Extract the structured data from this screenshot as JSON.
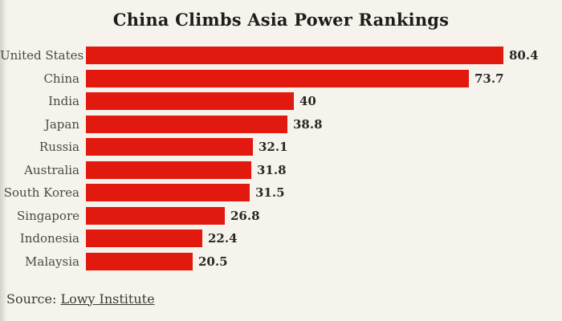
{
  "title": "China Climbs Asia Power Rankings",
  "source": {
    "prefix": "Source: ",
    "link_label": "Lowy Institute"
  },
  "colors": {
    "background": "#f6f3ed",
    "bar": "#e2190e",
    "title_text": "#1f1d1c",
    "label_text": "#4b4845",
    "value_text": "#2a2725",
    "source_text": "#3c3936"
  },
  "chart_data": {
    "type": "bar",
    "orientation": "horizontal",
    "title": "China Climbs Asia Power Rankings",
    "xlabel": "",
    "ylabel": "",
    "xlim": [
      0,
      85
    ],
    "grid": false,
    "legend": null,
    "categories": [
      "United States",
      "China",
      "India",
      "Japan",
      "Russia",
      "Australia",
      "South Korea",
      "Singapore",
      "Indonesia",
      "Malaysia"
    ],
    "values": [
      80.4,
      73.7,
      40,
      38.8,
      32.1,
      31.8,
      31.5,
      26.8,
      22.4,
      20.5
    ],
    "value_labels": [
      "80.4",
      "73.7",
      "40",
      "38.8",
      "32.1",
      "31.8",
      "31.5",
      "26.8",
      "22.4",
      "20.5"
    ]
  }
}
